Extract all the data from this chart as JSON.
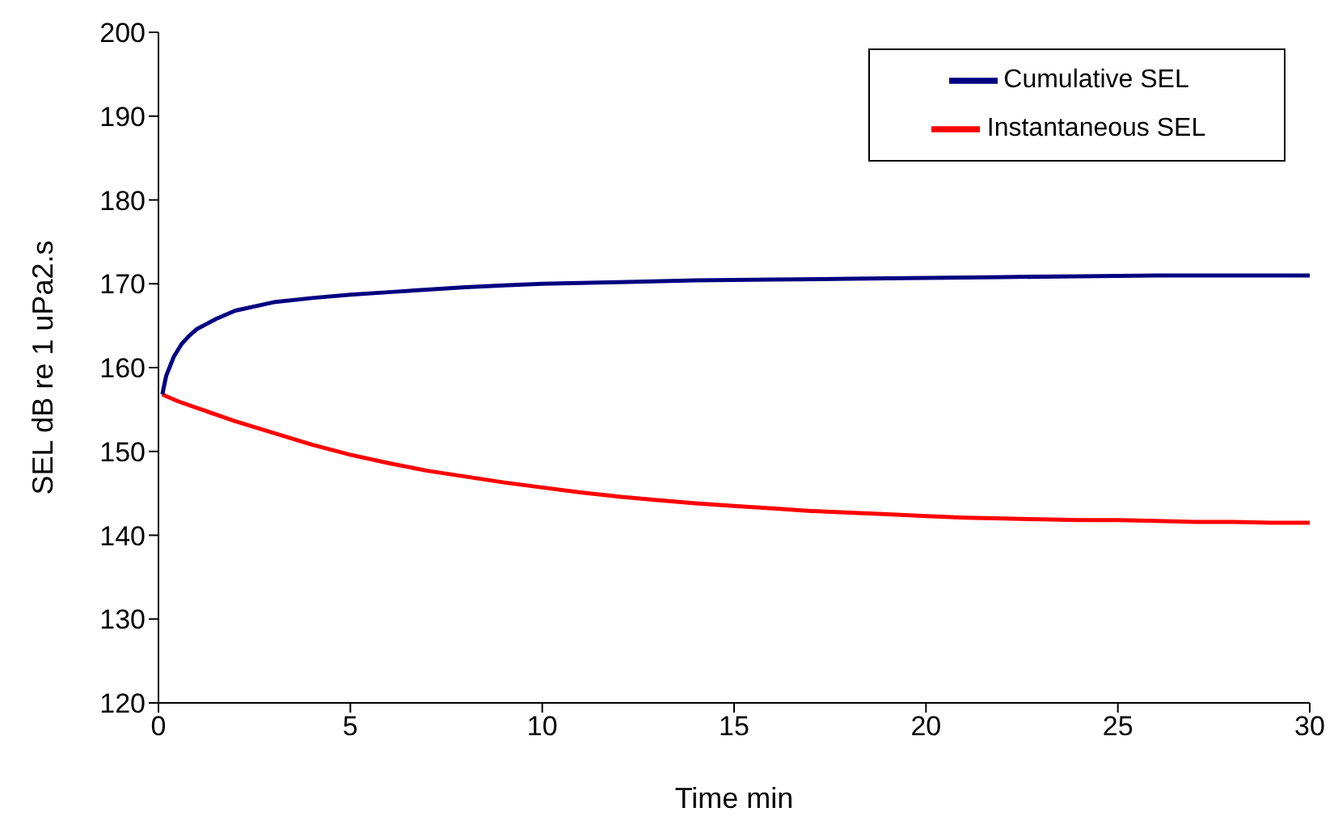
{
  "chart_data": {
    "type": "line",
    "xlabel": "Time min",
    "ylabel": "SEL dB re 1 uPa2.s",
    "xlim": [
      0,
      30
    ],
    "xticks": [
      0,
      5,
      10,
      15,
      20,
      25,
      30
    ],
    "ylim": [
      120,
      200
    ],
    "yticks": [
      120,
      130,
      140,
      150,
      160,
      170,
      180,
      190,
      200
    ],
    "legend": "top right",
    "marker": "none",
    "line_style": "solid",
    "series": [
      {
        "name": "Instantaneous SEL",
        "color": "#ff0000",
        "x": [
          0.1,
          0.5,
          1,
          1.5,
          2,
          3,
          4,
          5,
          6,
          7,
          8,
          9,
          10,
          11,
          12,
          13,
          14,
          15,
          16,
          17,
          18,
          19,
          20,
          21,
          22,
          23,
          24,
          25,
          26,
          27,
          28,
          29,
          30
        ],
        "values": [
          156.8,
          156,
          155.2,
          154.4,
          153.6,
          152.2,
          150.8,
          149.6,
          148.6,
          147.7,
          147,
          146.3,
          145.7,
          145.1,
          144.6,
          144.2,
          143.8,
          143.5,
          143.2,
          142.9,
          142.7,
          142.5,
          142.3,
          142.1,
          142,
          141.9,
          141.8,
          141.8,
          141.7,
          141.6,
          141.6,
          141.5,
          141.5
        ]
      },
      {
        "name": "Cumulative SEL",
        "color": "#000080",
        "x": [
          0.1,
          0.2,
          0.4,
          0.6,
          0.8,
          1,
          1.5,
          2,
          3,
          4,
          5,
          6,
          7,
          8,
          9,
          10,
          12,
          14,
          16,
          18,
          20,
          22,
          24,
          26,
          28,
          30
        ],
        "values": [
          156.8,
          159,
          161.3,
          162.8,
          163.8,
          164.6,
          165.8,
          166.8,
          167.8,
          168.3,
          168.7,
          169,
          169.3,
          169.6,
          169.8,
          170,
          170.2,
          170.4,
          170.5,
          170.6,
          170.7,
          170.8,
          170.9,
          171,
          171,
          171
        ]
      }
    ]
  }
}
